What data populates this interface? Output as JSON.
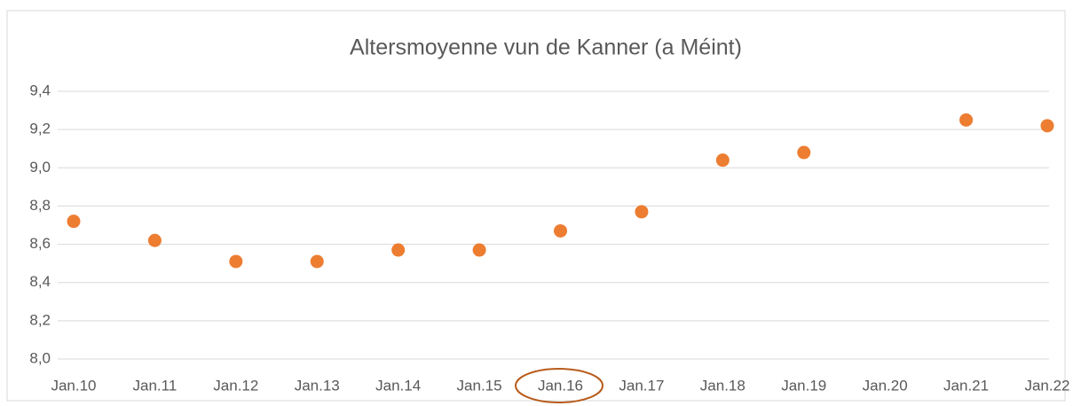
{
  "chart_data": {
    "type": "scatter",
    "title": "Altersmoyenne vun de Kanner (a Méint)",
    "categories": [
      "Jan.10",
      "Jan.11",
      "Jan.12",
      "Jan.13",
      "Jan.14",
      "Jan.15",
      "Jan.16",
      "Jan.17",
      "Jan.18",
      "Jan.19",
      "Jan.20",
      "Jan.21",
      "Jan.22"
    ],
    "values": [
      8.72,
      8.62,
      8.51,
      8.51,
      8.57,
      8.57,
      8.67,
      8.77,
      9.04,
      9.08,
      null,
      9.25,
      9.22
    ],
    "color": "#ed7d31",
    "ylim": [
      8.0,
      9.4
    ],
    "yticks": [
      {
        "value": 8.0,
        "label": "8,0"
      },
      {
        "value": 8.2,
        "label": "8,2"
      },
      {
        "value": 8.4,
        "label": "8,4"
      },
      {
        "value": 8.6,
        "label": "8,6"
      },
      {
        "value": 8.8,
        "label": "8,8"
      },
      {
        "value": 9.0,
        "label": "9,0"
      },
      {
        "value": 9.2,
        "label": "9,2"
      },
      {
        "value": 9.4,
        "label": "9,4"
      }
    ],
    "grid": true
  }
}
